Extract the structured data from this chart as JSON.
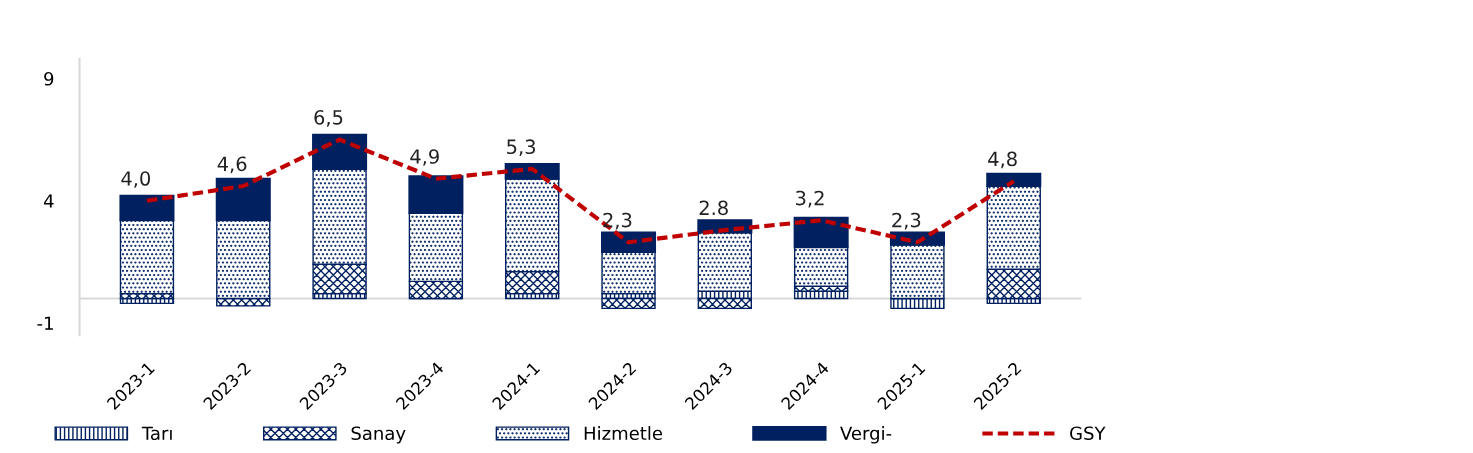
{
  "chart_data": {
    "type": "bar",
    "stacked": true,
    "categories": [
      "2023-1",
      "2023-2",
      "2023-3",
      "2023-4",
      "2024-1",
      "2024-2",
      "2024-3",
      "2024-4",
      "2025-1",
      "2025-2"
    ],
    "series": [
      {
        "name": "Tarı",
        "color": "#002060",
        "values": [
          -0.2,
          0.0,
          0.2,
          0.0,
          0.2,
          0.2,
          0.3,
          0.3,
          -0.4,
          -0.2
        ]
      },
      {
        "name": "Sanay",
        "color": "#002060",
        "values": [
          0.2,
          -0.3,
          1.2,
          0.7,
          0.9,
          -0.4,
          -0.4,
          0.2,
          0.0,
          1.2
        ]
      },
      {
        "name": "Hizmetle",
        "color": "#002060",
        "values": [
          3.0,
          3.2,
          3.9,
          2.8,
          3.8,
          1.7,
          2.4,
          1.6,
          2.2,
          3.4
        ]
      },
      {
        "name": "Vergi-",
        "color": "#002060",
        "values": [
          1.0,
          1.7,
          1.4,
          1.5,
          0.6,
          0.8,
          0.5,
          1.2,
          0.5,
          0.5
        ]
      },
      {
        "name": "GSY",
        "type": "line",
        "color": "#c00000",
        "line_style": "dashed",
        "values": [
          4.0,
          4.6,
          6.5,
          4.9,
          5.3,
          2.3,
          2.8,
          3.2,
          2.3,
          4.8
        ],
        "value_labels": [
          "4,0",
          "4,6",
          "6,5",
          "4,9",
          "5,3",
          "2,3",
          "2.8",
          "3,2",
          "2,3",
          "4,8"
        ]
      }
    ],
    "ylim": [
      -1.5,
      9.8
    ],
    "yticks": [
      -1,
      4,
      9
    ],
    "grid": false,
    "legend": "bottom",
    "ref_lines": [
      {
        "axis": "y",
        "value": 0,
        "color": "#d9d9d9"
      }
    ]
  }
}
